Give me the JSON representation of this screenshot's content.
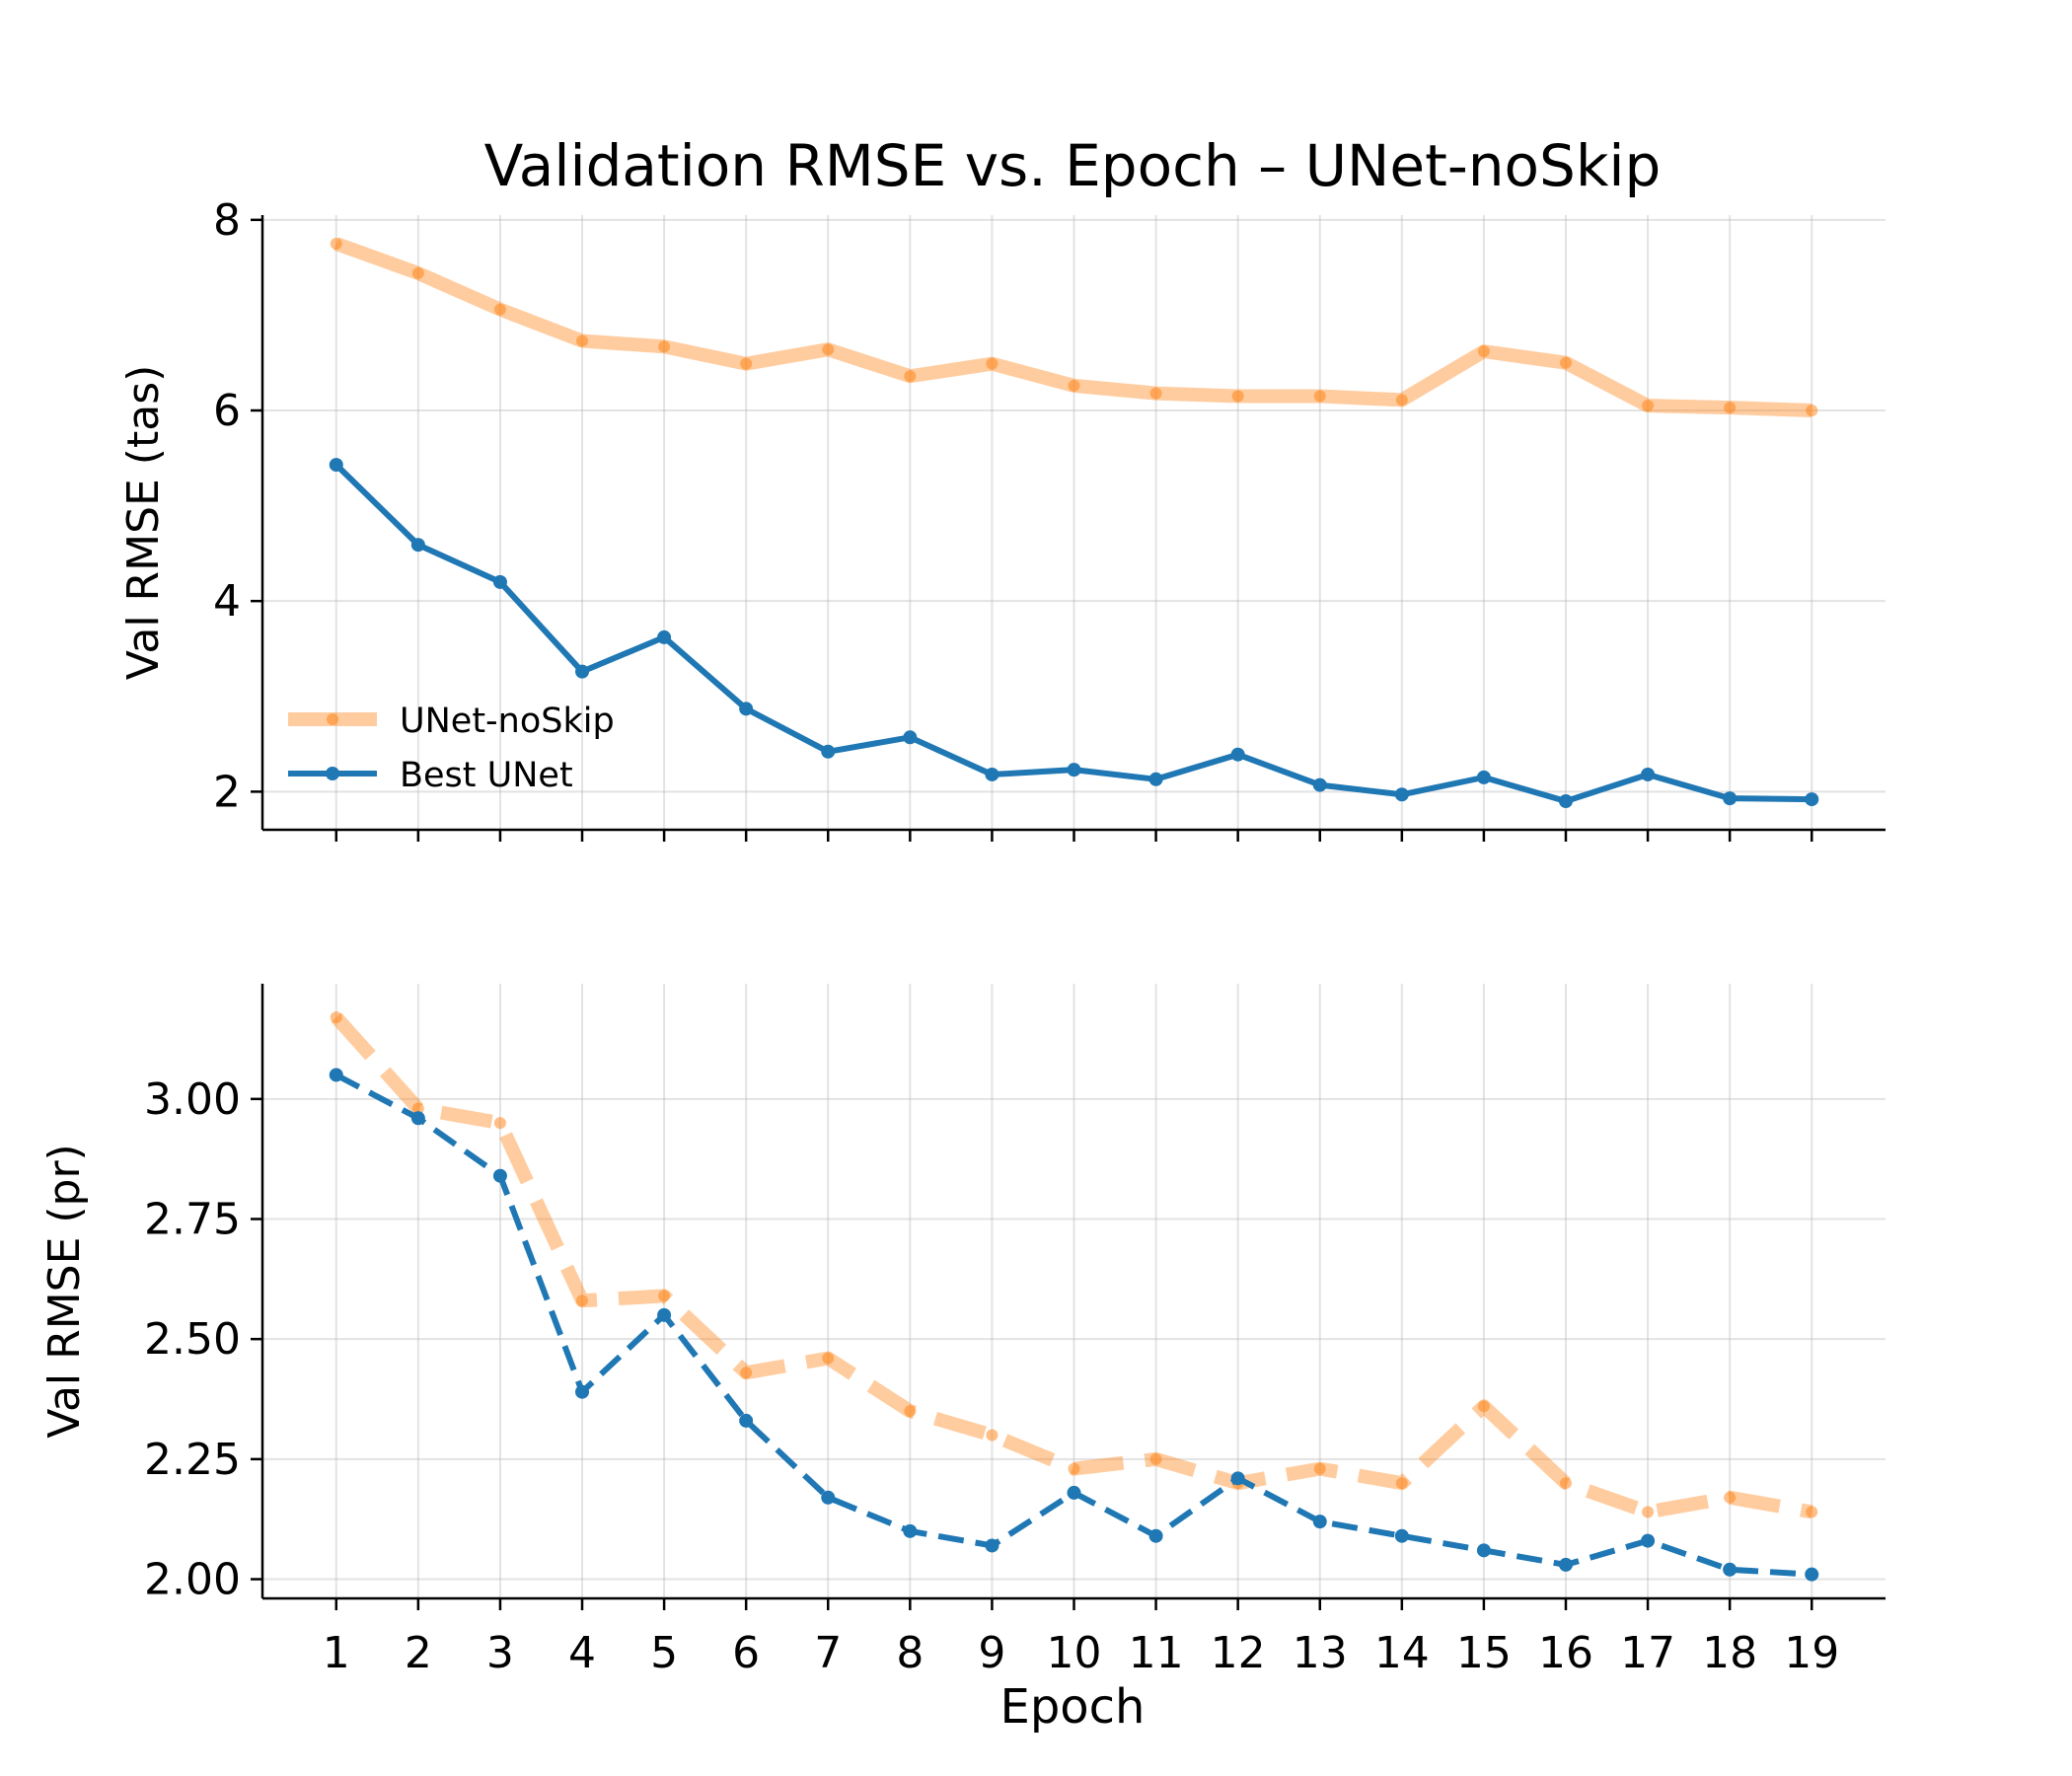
{
  "chart_data": {
    "title": "Validation RMSE vs. Epoch  –  UNet-noSkip",
    "xlabel": "Epoch",
    "x": [
      1,
      2,
      3,
      4,
      5,
      6,
      7,
      8,
      9,
      10,
      11,
      12,
      13,
      14,
      15,
      16,
      17,
      18,
      19
    ],
    "xticks": [
      "1",
      "2",
      "3",
      "4",
      "5",
      "6",
      "7",
      "8",
      "9",
      "10",
      "11",
      "12",
      "13",
      "14",
      "15",
      "16",
      "17",
      "18",
      "19"
    ],
    "grid": true,
    "legend_placement": "lower-left of top panel",
    "series_names": {
      "noskip": "UNet-noSkip",
      "best": "Best UNet"
    },
    "panels": [
      {
        "type": "line",
        "ylabel": "Val RMSE (tas)",
        "ylim": [
          1.6,
          8.05
        ],
        "yticks": [
          2,
          4,
          6,
          8
        ],
        "yticklabels": [
          "2",
          "4",
          "6",
          "8"
        ],
        "line_style": "solid",
        "series": [
          {
            "name": "UNet-noSkip",
            "color": "#ff7f0e",
            "values": [
              7.75,
              7.44,
              7.06,
              6.73,
              6.67,
              6.49,
              6.64,
              6.36,
              6.49,
              6.26,
              6.18,
              6.15,
              6.15,
              6.11,
              6.62,
              6.5,
              6.05,
              6.03,
              6.0
            ]
          },
          {
            "name": "Best UNet",
            "color": "#1f77b4",
            "values": [
              5.43,
              4.59,
              4.2,
              3.26,
              3.62,
              2.87,
              2.42,
              2.57,
              2.18,
              2.23,
              2.13,
              2.39,
              2.07,
              1.97,
              2.15,
              1.9,
              2.18,
              1.93,
              1.92
            ]
          }
        ]
      },
      {
        "type": "line",
        "ylabel": "Val RMSE (pr)",
        "ylim": [
          1.96,
          3.24
        ],
        "yticks": [
          2.0,
          2.25,
          2.5,
          2.75,
          3.0
        ],
        "yticklabels": [
          "2.00",
          "2.25",
          "2.50",
          "2.75",
          "3.00"
        ],
        "line_style": "dashed",
        "series": [
          {
            "name": "UNet-noSkip",
            "color": "#ff7f0e",
            "values": [
              3.17,
              2.98,
              2.95,
              2.58,
              2.59,
              2.43,
              2.46,
              2.35,
              2.3,
              2.23,
              2.25,
              2.2,
              2.23,
              2.2,
              2.36,
              2.2,
              2.14,
              2.17,
              2.14
            ]
          },
          {
            "name": "Best UNet",
            "color": "#1f77b4",
            "values": [
              3.05,
              2.96,
              2.84,
              2.39,
              2.55,
              2.33,
              2.17,
              2.1,
              2.07,
              2.18,
              2.09,
              2.21,
              2.12,
              2.09,
              2.06,
              2.03,
              2.08,
              2.02,
              2.01
            ]
          }
        ]
      }
    ]
  }
}
